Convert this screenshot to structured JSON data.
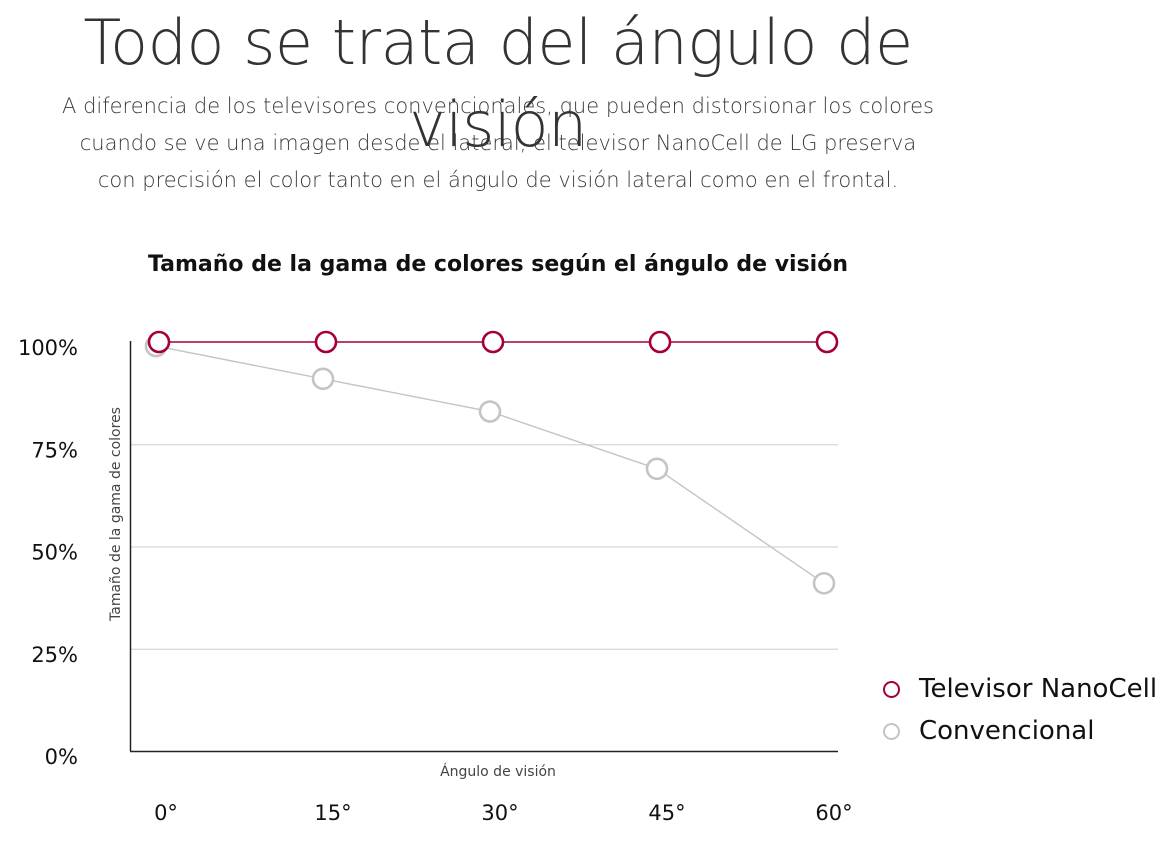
{
  "header": {
    "title": "Todo se trata del ángulo de visión",
    "description": "A diferencia de los televisores convencionales, que pueden distorsionar los colores cuando se ve una imagen desde el lateral, el televisor NanoCell de LG preserva con precisión el color tanto en el ángulo de visión lateral como en el frontal."
  },
  "chart_data": {
    "type": "line",
    "title": "Tamaño de la gama de colores según el ángulo de visión",
    "xlabel": "Ángulo de visión",
    "ylabel": "Tamaño de la gama de colores",
    "categories": [
      "0°",
      "15°",
      "30°",
      "45°",
      "60°"
    ],
    "y_ticks": [
      "100%",
      "75%",
      "50%",
      "25%",
      "0%"
    ],
    "ylim": [
      0,
      100
    ],
    "grid": true,
    "legend_position": "bottom-right",
    "series": [
      {
        "name": "Televisor NanoCell",
        "color": "#a50034",
        "values": [
          100,
          100,
          100,
          100,
          100
        ]
      },
      {
        "name": "Convencional",
        "color": "#c4c4c4",
        "values": [
          99,
          91,
          83,
          69,
          41
        ]
      }
    ]
  }
}
